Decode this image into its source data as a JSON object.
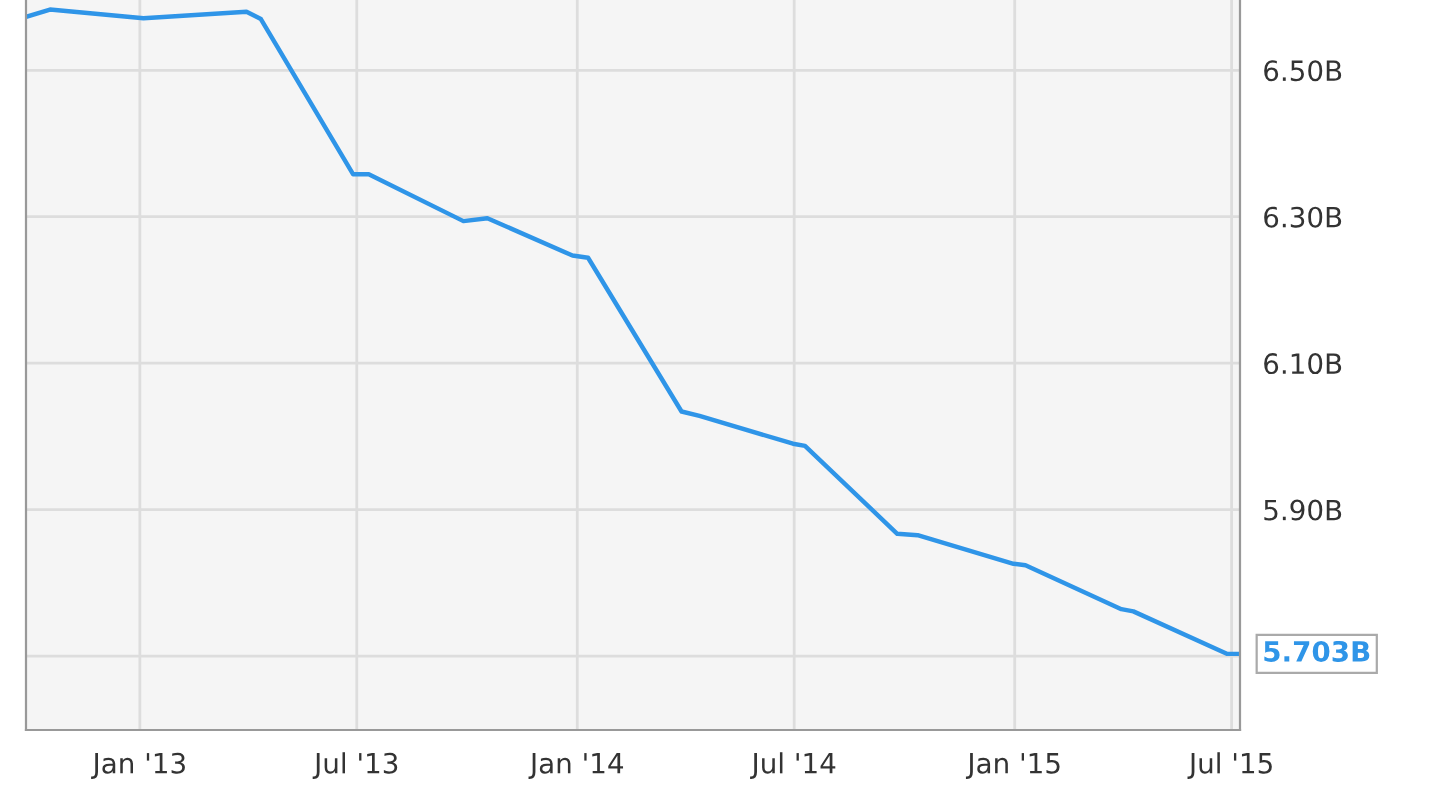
{
  "chart_data": {
    "type": "line",
    "x": [
      "2012-09-28",
      "2012-10-18",
      "2013-01-04",
      "2013-03-31",
      "2013-04-12",
      "2013-06-28",
      "2013-07-11",
      "2013-09-28",
      "2013-10-18",
      "2013-12-28",
      "2014-01-10",
      "2014-03-29",
      "2014-04-13",
      "2014-06-30",
      "2014-07-10",
      "2014-09-25",
      "2014-10-12",
      "2014-12-31",
      "2015-01-10",
      "2015-03-31",
      "2015-04-10",
      "2015-06-27",
      "2015-07-08"
    ],
    "series": [
      {
        "color": "#2f95e8",
        "values": [
          6.573,
          6.583,
          6.571,
          6.58,
          6.57,
          6.358,
          6.358,
          6.294,
          6.298,
          6.247,
          6.244,
          6.034,
          6.028,
          5.99,
          5.987,
          5.867,
          5.865,
          5.826,
          5.824,
          5.764,
          5.761,
          5.703,
          5.703
        ],
        "value_labels": [
          null,
          null,
          null,
          null,
          null,
          null,
          null,
          null,
          null,
          null,
          null,
          null,
          null,
          null,
          null,
          null,
          null,
          null,
          null,
          null,
          null,
          null,
          "5.703B"
        ]
      }
    ],
    "xlim": [
      "2012-09-28",
      "2015-07-08"
    ],
    "xticks": [
      {
        "value": "2013-01-01",
        "label": "Jan '13"
      },
      {
        "value": "2013-07-01",
        "label": "Jul '13"
      },
      {
        "value": "2014-01-01",
        "label": "Jan '14"
      },
      {
        "value": "2014-07-01",
        "label": "Jul '14"
      },
      {
        "value": "2015-01-01",
        "label": "Jan '15"
      },
      {
        "value": "2015-07-01",
        "label": "Jul '15"
      }
    ],
    "ylim": [
      5.599,
      6.596
    ],
    "yticks": [
      {
        "value": 5.7,
        "label": null
      },
      {
        "value": 5.9,
        "label": "5.90B"
      },
      {
        "value": 6.1,
        "label": "6.10B"
      },
      {
        "value": 6.3,
        "label": "6.30B"
      },
      {
        "value": 6.5,
        "label": "6.50B"
      }
    ],
    "grid": true,
    "legend": false,
    "marker": "none",
    "line_style": "solid"
  }
}
